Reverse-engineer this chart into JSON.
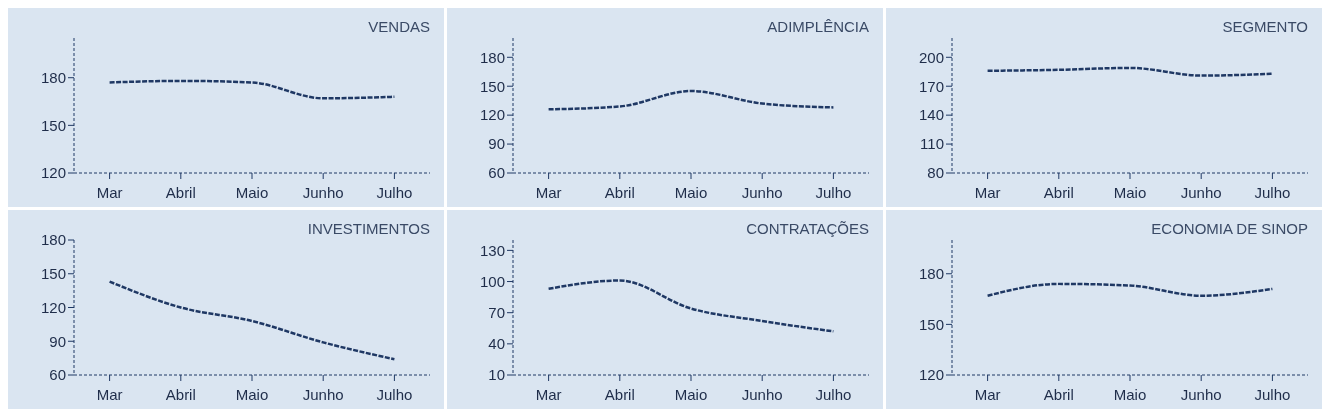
{
  "chart_data": [
    {
      "type": "line",
      "title": "VENDAS",
      "categories": [
        "Mar",
        "Abril",
        "Maio",
        "Junho",
        "Julho"
      ],
      "values": [
        177,
        178,
        177,
        167,
        168
      ],
      "color": "#1f3864",
      "ylim": [
        120,
        205
      ],
      "yticks": [
        120,
        150,
        180
      ],
      "line_style": "dashed",
      "marker": "none"
    },
    {
      "type": "line",
      "title": "ADIMPLÊNCIA",
      "categories": [
        "Mar",
        "Abril",
        "Maio",
        "Junho",
        "Julho"
      ],
      "values": [
        126,
        129,
        145,
        132,
        128
      ],
      "color": "#1f3864",
      "ylim": [
        60,
        200
      ],
      "yticks": [
        60,
        90,
        120,
        150,
        180
      ],
      "line_style": "dashed",
      "marker": "none"
    },
    {
      "type": "line",
      "title": "SEGMENTO",
      "categories": [
        "Mar",
        "Abril",
        "Maio",
        "Junho",
        "Julho"
      ],
      "values": [
        186,
        187,
        189,
        181,
        183
      ],
      "color": "#1f3864",
      "ylim": [
        80,
        220
      ],
      "yticks": [
        80,
        110,
        140,
        170,
        200
      ],
      "line_style": "dashed",
      "marker": "none"
    },
    {
      "type": "line",
      "title": "INVESTIMENTOS",
      "categories": [
        "Mar",
        "Abril",
        "Maio",
        "Junho",
        "Julho"
      ],
      "values": [
        143,
        120,
        108,
        89,
        74
      ],
      "color": "#1f3864",
      "ylim": [
        60,
        180
      ],
      "yticks": [
        60,
        90,
        120,
        150,
        180
      ],
      "line_style": "dashed",
      "marker": "none"
    },
    {
      "type": "line",
      "title": "CONTRATAÇÕES",
      "categories": [
        "Mar",
        "Abril",
        "Maio",
        "Junho",
        "Julho"
      ],
      "values": [
        93,
        101,
        74,
        62,
        52
      ],
      "color": "#1f3864",
      "ylim": [
        10,
        140
      ],
      "yticks": [
        10,
        40,
        70,
        100,
        130
      ],
      "line_style": "dashed",
      "marker": "none"
    },
    {
      "type": "line",
      "title": "ECONOMIA DE SINOP",
      "categories": [
        "Mar",
        "Abril",
        "Maio",
        "Junho",
        "Julho"
      ],
      "values": [
        167,
        174,
        173,
        167,
        171
      ],
      "color": "#1f3864",
      "ylim": [
        120,
        200
      ],
      "yticks": [
        120,
        150,
        180
      ],
      "line_style": "dashed",
      "marker": "none"
    }
  ]
}
